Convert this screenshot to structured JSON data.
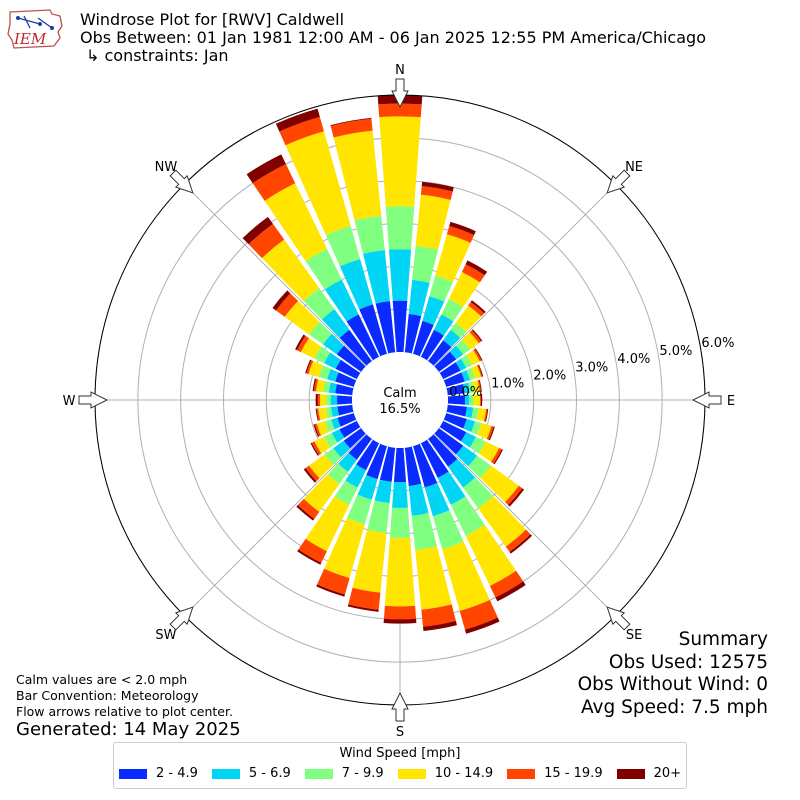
{
  "title": {
    "line1": "Windrose Plot for [RWV] Caldwell",
    "line2": "Obs Between: 01 Jan 1981 12:00 AM - 06 Jan 2025 12:55 PM America/Chicago",
    "line3": "↳ constraints: Jan"
  },
  "logo": {
    "text": "IEM"
  },
  "footnote": {
    "line1": "Calm values are < 2.0 mph",
    "line2": "Bar Convention: Meteorology",
    "line3": "Flow arrows relative to plot center."
  },
  "generated": "Generated: 14 May 2025",
  "summary": {
    "title": "Summary",
    "obs_used": "Obs Used: 12575",
    "obs_without_wind": "Obs Without Wind: 0",
    "avg_speed": "Avg Speed: 7.5 mph"
  },
  "legend": {
    "title": "Wind Speed [mph]",
    "items": [
      {
        "label": "2 - 4.9",
        "color": "#0a2bff"
      },
      {
        "label": "5 - 6.9",
        "color": "#00d5f5"
      },
      {
        "label": "7 - 9.9",
        "color": "#80ff80"
      },
      {
        "label": "10 - 14.9",
        "color": "#ffe500"
      },
      {
        "label": "15 - 19.9",
        "color": "#ff4500"
      },
      {
        "label": "20+",
        "color": "#800000"
      }
    ]
  },
  "chart_data": {
    "type": "windrose",
    "calm_label": "Calm",
    "calm_value": "16.5%",
    "direction_labels": [
      "N",
      "NE",
      "E",
      "SE",
      "S",
      "SW",
      "W",
      "NW"
    ],
    "radial_ticks": [
      "0.0%",
      "1.0%",
      "2.0%",
      "3.0%",
      "4.0%",
      "5.0%",
      "6.0%"
    ],
    "rmax": 6.0,
    "series": [
      {
        "name": "2 - 4.9",
        "color": "#0a2bff"
      },
      {
        "name": "5 - 6.9",
        "color": "#00d5f5"
      },
      {
        "name": "7 - 9.9",
        "color": "#80ff80"
      },
      {
        "name": "10 - 14.9",
        "color": "#ffe500"
      },
      {
        "name": "15 - 19.9",
        "color": "#ff4500"
      },
      {
        "name": "20+",
        "color": "#800000"
      }
    ],
    "directions_deg": [
      0,
      10,
      20,
      30,
      40,
      50,
      60,
      70,
      80,
      90,
      100,
      110,
      120,
      130,
      140,
      150,
      160,
      170,
      180,
      190,
      200,
      210,
      220,
      230,
      240,
      250,
      260,
      270,
      280,
      290,
      300,
      310,
      320,
      330,
      340,
      350
    ],
    "cumulative_pct": [
      [
        1.2,
        2.4,
        3.4,
        5.5,
        5.8,
        6.0
      ],
      [
        0.9,
        1.7,
        2.5,
        3.7,
        3.9,
        4.0
      ],
      [
        0.8,
        1.4,
        1.9,
        2.9,
        3.1,
        3.2
      ],
      [
        0.7,
        1.1,
        1.5,
        2.2,
        2.4,
        2.5
      ],
      [
        0.6,
        0.9,
        1.1,
        1.6,
        1.7,
        1.75
      ],
      [
        0.5,
        0.7,
        0.9,
        1.15,
        1.22,
        1.25
      ],
      [
        0.45,
        0.6,
        0.75,
        0.95,
        1.0,
        1.02
      ],
      [
        0.45,
        0.58,
        0.7,
        0.85,
        0.88,
        0.9
      ],
      [
        0.4,
        0.52,
        0.62,
        0.75,
        0.78,
        0.8
      ],
      [
        0.4,
        0.5,
        0.6,
        0.75,
        0.77,
        0.8
      ],
      [
        0.45,
        0.6,
        0.72,
        0.9,
        0.93,
        0.95
      ],
      [
        0.5,
        0.7,
        0.85,
        1.1,
        1.15,
        1.18
      ],
      [
        0.6,
        0.85,
        1.1,
        1.45,
        1.52,
        1.55
      ],
      [
        0.7,
        1.1,
        1.5,
        2.3,
        2.4,
        2.45
      ],
      [
        0.8,
        1.4,
        2.0,
        3.1,
        3.25,
        3.3
      ],
      [
        0.9,
        1.6,
        2.4,
        3.7,
        4.0,
        4.1
      ],
      [
        1.0,
        1.7,
        2.5,
        4.0,
        4.45,
        4.55
      ],
      [
        0.9,
        1.6,
        2.4,
        3.8,
        4.2,
        4.3
      ],
      [
        0.8,
        1.4,
        2.1,
        3.7,
        4.0,
        4.1
      ],
      [
        0.8,
        1.3,
        2.0,
        3.4,
        3.8,
        3.85
      ],
      [
        0.8,
        1.3,
        1.9,
        3.2,
        3.6,
        3.65
      ],
      [
        0.7,
        1.15,
        1.6,
        2.8,
        3.1,
        3.15
      ],
      [
        0.6,
        0.95,
        1.3,
        2.1,
        2.3,
        2.35
      ],
      [
        0.5,
        0.8,
        1.05,
        1.5,
        1.6,
        1.65
      ],
      [
        0.45,
        0.65,
        0.85,
        1.1,
        1.17,
        1.2
      ],
      [
        0.4,
        0.55,
        0.7,
        0.9,
        0.95,
        0.98
      ],
      [
        0.35,
        0.5,
        0.62,
        0.8,
        0.84,
        0.86
      ],
      [
        0.35,
        0.5,
        0.6,
        0.75,
        0.8,
        0.85
      ],
      [
        0.4,
        0.55,
        0.68,
        0.85,
        0.9,
        0.93
      ],
      [
        0.45,
        0.65,
        0.85,
        1.1,
        1.15,
        1.18
      ],
      [
        0.55,
        0.85,
        1.1,
        1.45,
        1.55,
        1.6
      ],
      [
        0.7,
        1.1,
        1.5,
        2.2,
        2.45,
        2.55
      ],
      [
        0.9,
        1.5,
        2.1,
        3.5,
        3.95,
        4.15
      ],
      [
        1.1,
        2.0,
        2.8,
        4.5,
        5.0,
        5.25
      ],
      [
        1.2,
        2.3,
        3.1,
        5.4,
        5.75,
        5.95
      ],
      [
        1.2,
        2.4,
        3.2,
        5.2,
        5.48,
        5.5
      ]
    ]
  }
}
